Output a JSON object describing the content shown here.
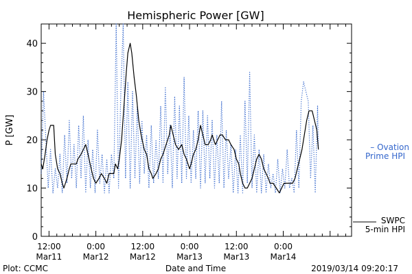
{
  "footer": {
    "left": "Plot: CCMC",
    "right": "2019/03/14 09:20:17"
  },
  "chart_data": {
    "type": "line",
    "title": "Hemispheric Power [GW]",
    "ylabel": "P [GW]",
    "xlabel": "Date and Time",
    "ylim": [
      0,
      44
    ],
    "xlim_hours": [
      -14,
      65.5
    ],
    "yticks": [
      0,
      10,
      20,
      30,
      40
    ],
    "xticks": [
      {
        "hour": -12,
        "time": "12:00",
        "date": "Mar11"
      },
      {
        "hour": 0,
        "time": "0:00",
        "date": "Mar12"
      },
      {
        "hour": 12,
        "time": "12:00",
        "date": "Mar12"
      },
      {
        "hour": 24,
        "time": "0:00",
        "date": "Mar13"
      },
      {
        "hour": 36,
        "time": "12:00",
        "date": "Mar13"
      },
      {
        "hour": 48,
        "time": "0:00",
        "date": "Mar14"
      }
    ],
    "grid": false,
    "colors": {
      "ovation": "#3366cc",
      "swpc": "#000000"
    },
    "series": [
      {
        "name": "SWPC 5-min HPI",
        "legend_lines": [
          "SWPC",
          "5-min HPI"
        ],
        "style": "solid",
        "points": [
          [
            -14,
            15
          ],
          [
            -13.6,
            14
          ],
          [
            -13,
            17
          ],
          [
            -12.5,
            20
          ],
          [
            -12,
            22
          ],
          [
            -11.6,
            23
          ],
          [
            -10.8,
            23
          ],
          [
            -10.4,
            17
          ],
          [
            -9.8,
            14
          ],
          [
            -9.2,
            13
          ],
          [
            -8.6,
            11
          ],
          [
            -8.2,
            10
          ],
          [
            -7.4,
            12
          ],
          [
            -6.8,
            14
          ],
          [
            -6.4,
            15
          ],
          [
            -5,
            15
          ],
          [
            -4.6,
            16
          ],
          [
            -3.8,
            17
          ],
          [
            -3.2,
            18
          ],
          [
            -2.6,
            19
          ],
          [
            -2,
            17
          ],
          [
            -1.2,
            14
          ],
          [
            -0.6,
            12
          ],
          [
            0,
            11
          ],
          [
            0.8,
            12
          ],
          [
            1.4,
            13
          ],
          [
            2.2,
            12
          ],
          [
            2.8,
            11
          ],
          [
            3.4,
            13
          ],
          [
            4.6,
            13
          ],
          [
            5,
            15
          ],
          [
            5.6,
            14
          ],
          [
            6,
            16
          ],
          [
            6.6,
            20
          ],
          [
            7.2,
            27
          ],
          [
            7.8,
            34
          ],
          [
            8.2,
            38
          ],
          [
            8.8,
            40
          ],
          [
            9.2,
            38
          ],
          [
            9.8,
            33
          ],
          [
            10.4,
            29
          ],
          [
            11,
            24
          ],
          [
            11.6,
            21
          ],
          [
            12.4,
            18
          ],
          [
            13,
            17
          ],
          [
            13.6,
            14
          ],
          [
            14.2,
            13
          ],
          [
            14.6,
            12
          ],
          [
            15.4,
            13
          ],
          [
            16,
            14
          ],
          [
            16.6,
            16
          ],
          [
            17.2,
            17
          ],
          [
            18,
            19
          ],
          [
            18.8,
            21
          ],
          [
            19.2,
            23
          ],
          [
            19.8,
            21
          ],
          [
            20.4,
            19
          ],
          [
            21.2,
            18
          ],
          [
            22,
            19
          ],
          [
            22.6,
            17
          ],
          [
            23.2,
            16
          ],
          [
            24,
            14
          ],
          [
            24.4,
            15
          ],
          [
            25,
            17
          ],
          [
            25.6,
            18
          ],
          [
            26.2,
            20
          ],
          [
            26.8,
            23
          ],
          [
            27.4,
            21
          ],
          [
            28,
            19
          ],
          [
            28.8,
            19
          ],
          [
            29.4,
            20
          ],
          [
            29.8,
            21
          ],
          [
            30.2,
            20
          ],
          [
            30.6,
            19
          ],
          [
            31.2,
            20
          ],
          [
            31.8,
            21
          ],
          [
            32.4,
            21
          ],
          [
            33.2,
            20
          ],
          [
            34,
            20
          ],
          [
            34.6,
            19
          ],
          [
            35.4,
            18
          ],
          [
            36,
            16
          ],
          [
            36.6,
            15
          ],
          [
            37,
            13
          ],
          [
            37.6,
            11
          ],
          [
            38.2,
            10
          ],
          [
            38.8,
            10
          ],
          [
            39.4,
            11
          ],
          [
            40,
            12
          ],
          [
            40.6,
            14
          ],
          [
            41.2,
            16
          ],
          [
            41.8,
            17
          ],
          [
            42.4,
            16
          ],
          [
            43,
            14
          ],
          [
            43.6,
            13
          ],
          [
            44.2,
            12
          ],
          [
            44.6,
            11
          ],
          [
            45.4,
            11
          ],
          [
            46.2,
            10
          ],
          [
            47,
            9
          ],
          [
            47.6,
            10
          ],
          [
            48.2,
            11
          ],
          [
            49,
            11
          ],
          [
            49.6,
            11
          ],
          [
            50.4,
            11
          ],
          [
            51,
            12
          ],
          [
            51.6,
            14
          ],
          [
            52.2,
            16
          ],
          [
            52.8,
            18
          ],
          [
            53.4,
            21
          ],
          [
            54,
            24
          ],
          [
            54.6,
            26
          ],
          [
            55.4,
            26
          ],
          [
            56,
            24
          ],
          [
            56.6,
            22
          ],
          [
            57,
            18
          ]
        ]
      },
      {
        "name": "Ovation Prime HPI",
        "legend_lines": [
          "– Ovation",
          "Prime HPI"
        ],
        "style": "dotted",
        "points": [
          [
            -14,
            13
          ],
          [
            -13.4,
            30
          ],
          [
            -12.8,
            20
          ],
          [
            -12.2,
            10
          ],
          [
            -11.6,
            18
          ],
          [
            -11,
            9
          ],
          [
            -10.4,
            14
          ],
          [
            -9.8,
            10
          ],
          [
            -9.2,
            17
          ],
          [
            -8.6,
            9
          ],
          [
            -8,
            21
          ],
          [
            -7.4,
            11
          ],
          [
            -6.8,
            24
          ],
          [
            -6.2,
            12
          ],
          [
            -5.6,
            19
          ],
          [
            -5,
            10
          ],
          [
            -4.4,
            23
          ],
          [
            -3.8,
            12
          ],
          [
            -3.2,
            25
          ],
          [
            -2.6,
            9
          ],
          [
            -2,
            20
          ],
          [
            -1.4,
            10
          ],
          [
            -0.8,
            18
          ],
          [
            -0.2,
            9
          ],
          [
            0.4,
            22
          ],
          [
            1,
            11
          ],
          [
            1.6,
            17
          ],
          [
            2.2,
            9
          ],
          [
            2.8,
            16
          ],
          [
            3.4,
            9
          ],
          [
            4,
            17
          ],
          [
            4.6,
            12
          ],
          [
            5.2,
            44
          ],
          [
            5.8,
            10
          ],
          [
            6.4,
            30
          ],
          [
            7,
            44
          ],
          [
            7.6,
            12
          ],
          [
            8.2,
            32
          ],
          [
            8.8,
            10
          ],
          [
            9.4,
            30
          ],
          [
            10,
            12
          ],
          [
            10.6,
            27
          ],
          [
            11.2,
            11
          ],
          [
            11.8,
            24
          ],
          [
            12.4,
            13
          ],
          [
            13,
            21
          ],
          [
            13.6,
            10
          ],
          [
            14.2,
            23
          ],
          [
            14.8,
            11
          ],
          [
            15.4,
            20
          ],
          [
            16,
            12
          ],
          [
            16.6,
            27
          ],
          [
            17.2,
            11
          ],
          [
            17.8,
            31
          ],
          [
            18.4,
            13
          ],
          [
            19,
            23
          ],
          [
            19.6,
            10
          ],
          [
            20.2,
            29
          ],
          [
            20.8,
            12
          ],
          [
            21.4,
            27
          ],
          [
            22,
            11
          ],
          [
            22.6,
            33
          ],
          [
            23.2,
            12
          ],
          [
            23.8,
            25
          ],
          [
            24.4,
            11
          ],
          [
            25,
            22
          ],
          [
            25.6,
            12
          ],
          [
            26.2,
            26
          ],
          [
            26.8,
            10
          ],
          [
            27.4,
            26
          ],
          [
            28,
            11
          ],
          [
            28.6,
            25
          ],
          [
            29.2,
            12
          ],
          [
            29.8,
            24
          ],
          [
            30.4,
            10
          ],
          [
            31,
            21
          ],
          [
            31.6,
            11
          ],
          [
            32.2,
            28
          ],
          [
            32.8,
            10
          ],
          [
            33.4,
            22
          ],
          [
            34,
            12
          ],
          [
            34.6,
            19
          ],
          [
            35.2,
            9
          ],
          [
            35.8,
            18
          ],
          [
            36.4,
            9
          ],
          [
            37,
            21
          ],
          [
            37.6,
            9
          ],
          [
            38.2,
            28
          ],
          [
            38.8,
            11
          ],
          [
            39.4,
            34
          ],
          [
            40,
            10
          ],
          [
            40.6,
            21
          ],
          [
            41.2,
            9
          ],
          [
            41.8,
            18
          ],
          [
            42.4,
            9
          ],
          [
            43,
            17
          ],
          [
            43.6,
            9
          ],
          [
            44.2,
            15
          ],
          [
            44.8,
            10
          ],
          [
            45.4,
            13
          ],
          [
            46,
            9
          ],
          [
            46.6,
            16
          ],
          [
            47.2,
            9
          ],
          [
            47.8,
            14
          ],
          [
            48.4,
            10
          ],
          [
            49,
            18
          ],
          [
            49.6,
            10
          ],
          [
            50.2,
            12
          ],
          [
            50.8,
            9
          ],
          [
            51.4,
            22
          ],
          [
            52,
            10
          ],
          [
            52.6,
            28
          ],
          [
            53.2,
            32
          ],
          [
            53.8,
            30
          ],
          [
            54.4,
            28
          ],
          [
            55,
            12
          ],
          [
            55.6,
            23
          ],
          [
            56.2,
            9
          ],
          [
            56.8,
            27
          ],
          [
            57,
            18
          ]
        ]
      }
    ]
  }
}
